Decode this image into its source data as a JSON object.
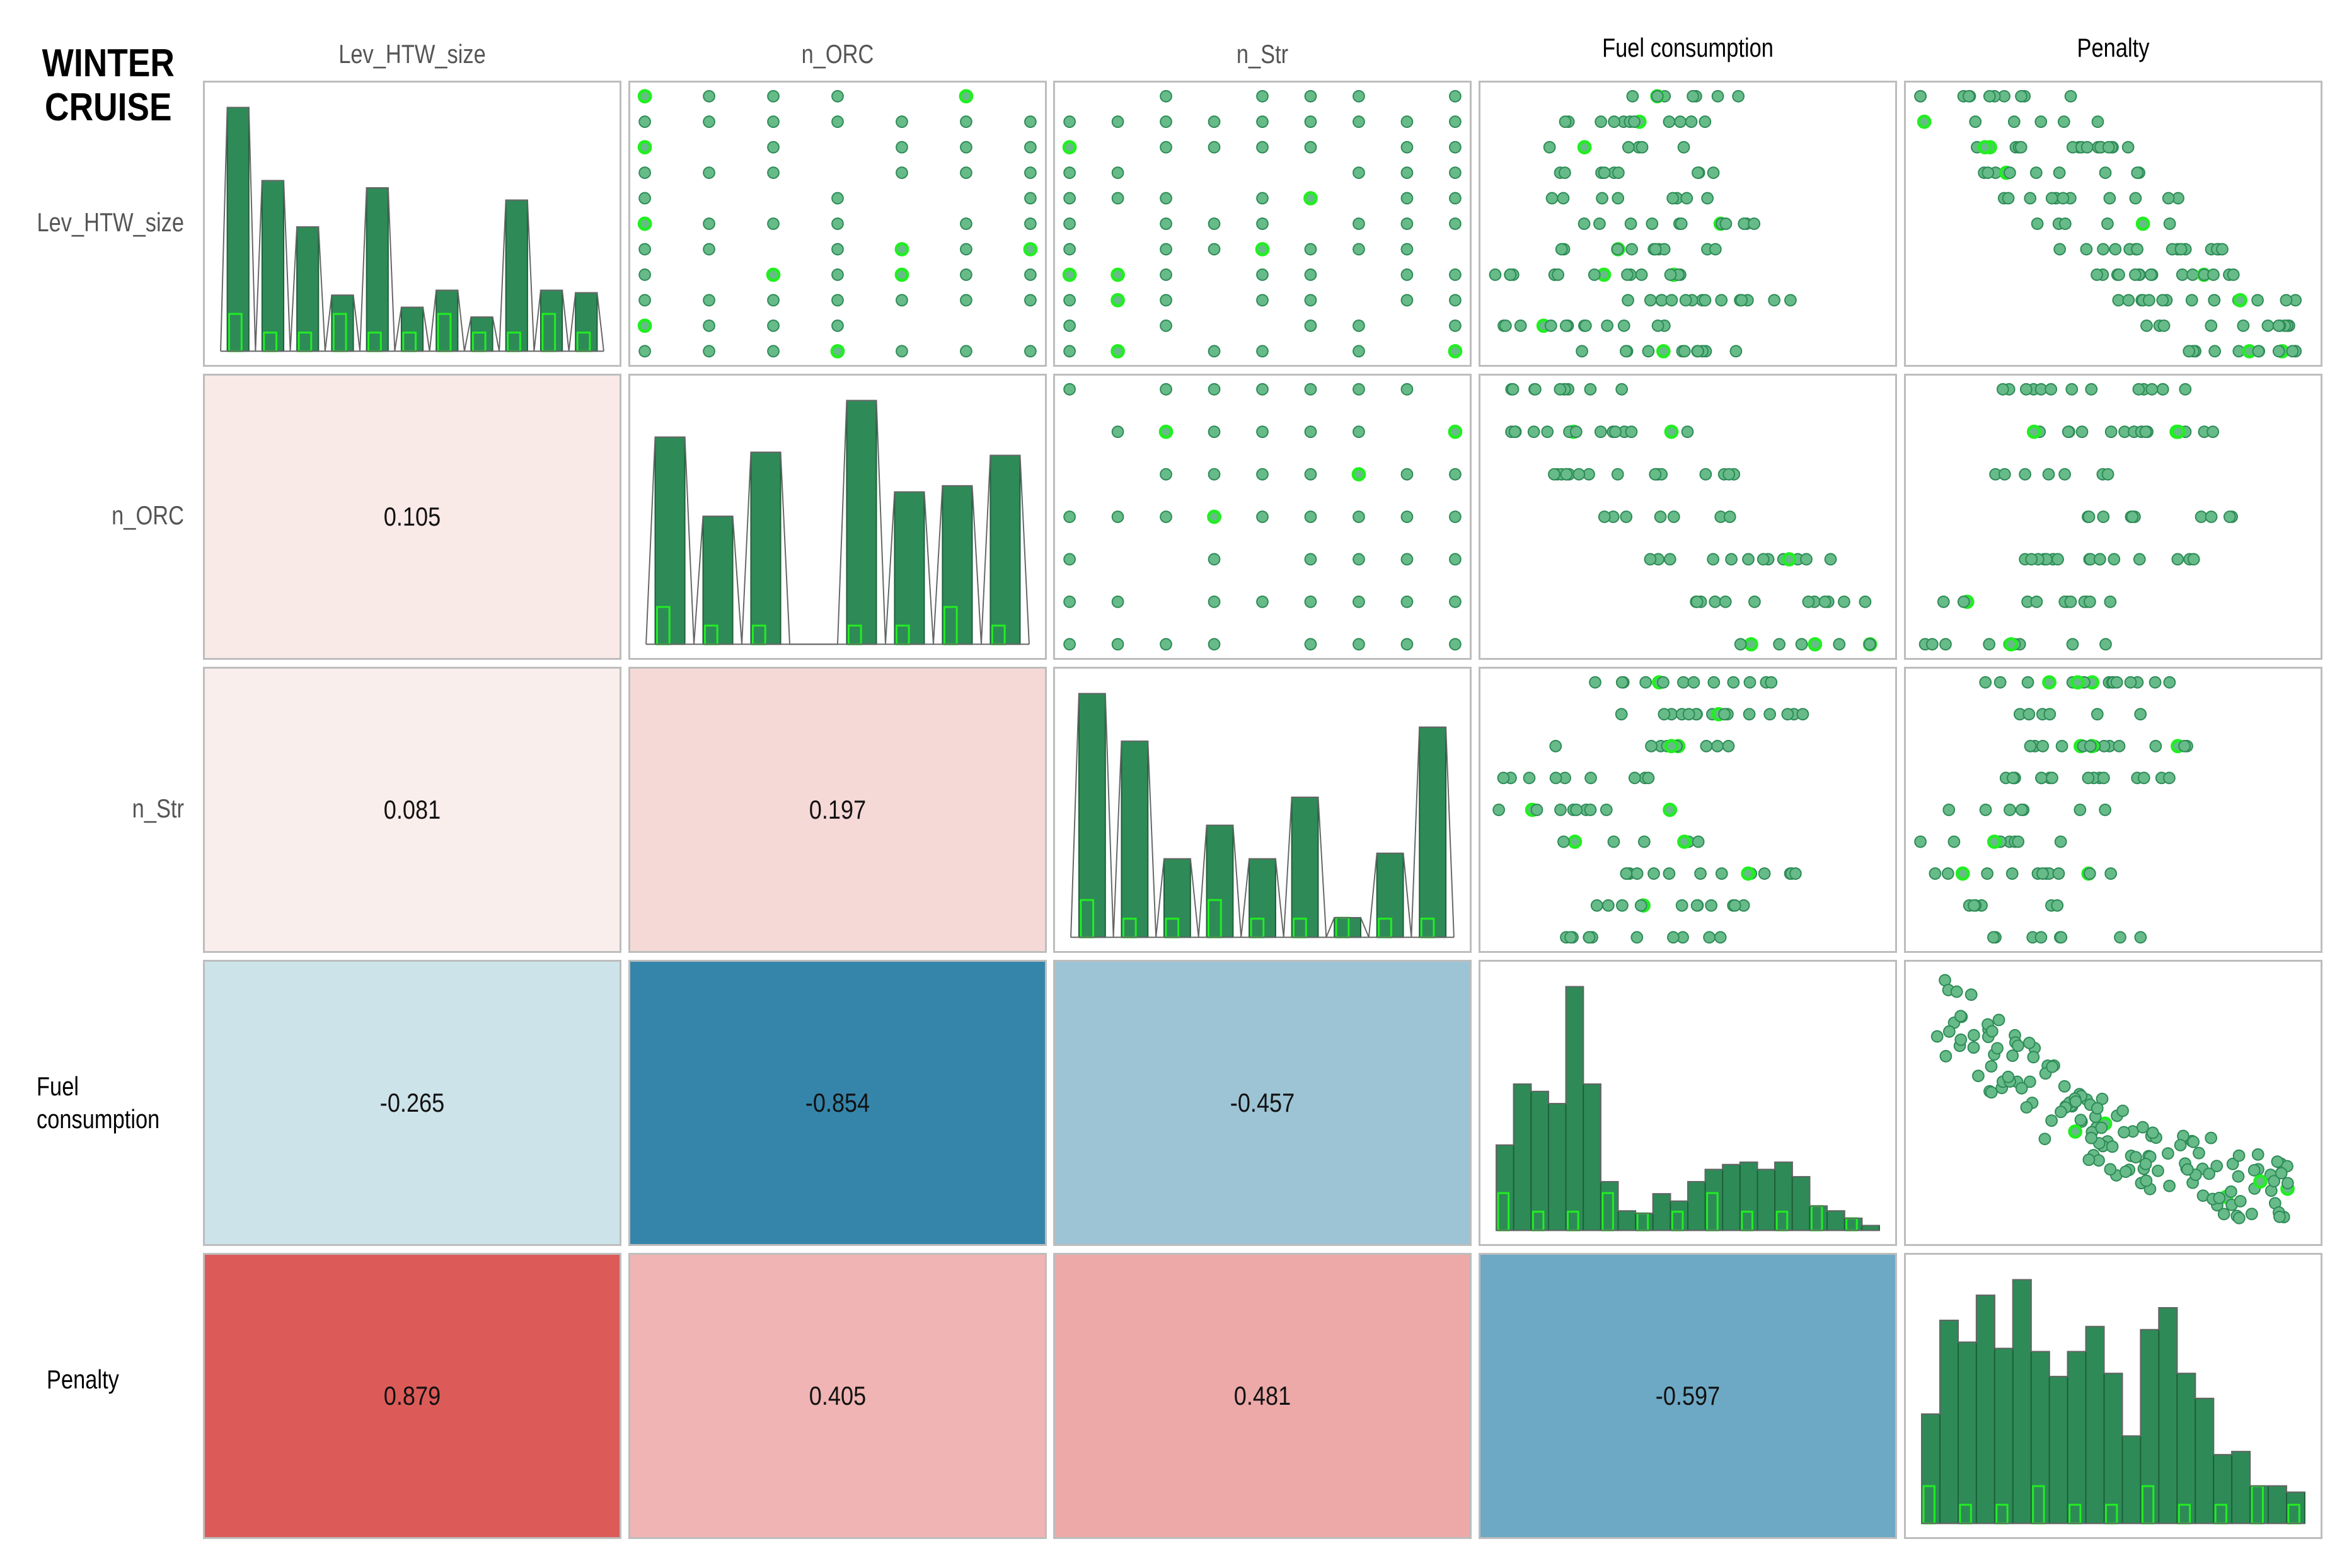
{
  "title": [
    "WINTER",
    "CRUISE"
  ],
  "variables": [
    "Lev_HTW_size",
    "n_ORC",
    "n_Str",
    "Fuel consumption",
    "Penalty"
  ],
  "colors": {
    "bar_fill": "#2e8b57",
    "bar_stroke": "#1f5f3b",
    "point_fill": "#66bb88",
    "point_stroke": "#2e8b57",
    "highlight": "#22ee22",
    "line": "#666666",
    "panel_border": "#bdbdbd"
  },
  "chart_data": {
    "type": "scatter-matrix",
    "title": "WINTER CRUISE",
    "correlations": [
      {
        "row": "n_ORC",
        "col": "Lev_HTW_size",
        "value": "0.105",
        "color": "#f9e9e7"
      },
      {
        "row": "n_Str",
        "col": "Lev_HTW_size",
        "value": "0.081",
        "color": "#faeeec"
      },
      {
        "row": "n_Str",
        "col": "n_ORC",
        "value": "0.197",
        "color": "#f5d9d6"
      },
      {
        "row": "Fuel consumption",
        "col": "Lev_HTW_size",
        "value": "-0.265",
        "color": "#cde3ea"
      },
      {
        "row": "Fuel consumption",
        "col": "n_ORC",
        "value": "-0.854",
        "color": "#3585aa"
      },
      {
        "row": "Fuel consumption",
        "col": "n_Str",
        "value": "-0.457",
        "color": "#9cc4d5"
      },
      {
        "row": "Penalty",
        "col": "Lev_HTW_size",
        "value": "0.879",
        "color": "#dc5b58"
      },
      {
        "row": "Penalty",
        "col": "n_ORC",
        "value": "0.405",
        "color": "#efb4b3"
      },
      {
        "row": "Penalty",
        "col": "n_Str",
        "value": "0.481",
        "color": "#eca9a8"
      },
      {
        "row": "Penalty",
        "col": "Fuel consumption",
        "value": "-0.597",
        "color": "#6da9c5"
      }
    ],
    "histograms": [
      {
        "variable": "Lev_HTW_size",
        "values": [
          100,
          70,
          51,
          23,
          67,
          18,
          25,
          14,
          62,
          25,
          24
        ]
      },
      {
        "variable": "n_ORC",
        "values": [
          68,
          42,
          63,
          0,
          80,
          50,
          52,
          62
        ]
      },
      {
        "variable": "n_Str",
        "values": [
          87,
          70,
          28,
          40,
          28,
          50,
          7,
          30,
          75
        ]
      },
      {
        "variable": "Fuel consumption",
        "values": [
          35,
          60,
          57,
          52,
          100,
          60,
          20,
          8,
          7,
          15,
          12,
          20,
          25,
          27,
          28,
          25,
          28,
          22,
          10,
          8,
          5,
          2
        ]
      },
      {
        "variable": "Penalty",
        "values": [
          35,
          65,
          58,
          73,
          56,
          78,
          55,
          47,
          55,
          63,
          48,
          28,
          62,
          69,
          48,
          40,
          22,
          23,
          12,
          12,
          10
        ]
      }
    ]
  }
}
